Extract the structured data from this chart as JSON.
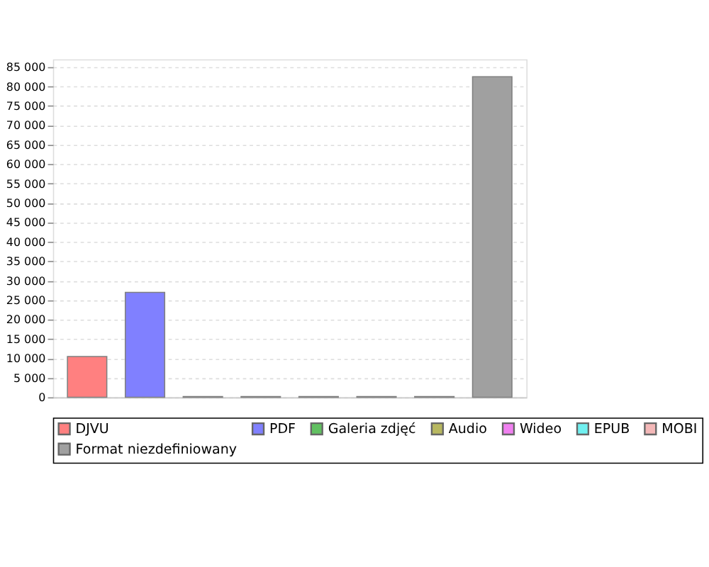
{
  "chart_data": {
    "type": "bar",
    "categories": [
      null,
      null,
      null,
      null,
      null,
      null,
      null,
      null
    ],
    "series": [
      {
        "name": "DJVU",
        "color": "#ff8080",
        "values": [
          10500,
          null,
          null,
          null,
          null,
          null,
          null,
          null
        ]
      },
      {
        "name": "PDF",
        "color": "#8080ff",
        "values": [
          null,
          27000,
          null,
          null,
          null,
          null,
          null,
          null
        ]
      },
      {
        "name": "Galeria zdjęć",
        "color": "#60c060",
        "values": [
          null,
          null,
          200,
          null,
          null,
          null,
          null,
          null
        ]
      },
      {
        "name": "Audio",
        "color": "#b8b860",
        "values": [
          null,
          null,
          null,
          200,
          null,
          null,
          null,
          null
        ]
      },
      {
        "name": "Wideo",
        "color": "#f080f0",
        "values": [
          null,
          null,
          null,
          null,
          200,
          null,
          null,
          null
        ]
      },
      {
        "name": "EPUB",
        "color": "#70f0f0",
        "values": [
          null,
          null,
          null,
          null,
          null,
          200,
          null,
          null
        ]
      },
      {
        "name": "MOBI",
        "color": "#f4b8b8",
        "values": [
          null,
          null,
          null,
          null,
          null,
          null,
          200,
          null
        ]
      },
      {
        "name": "Format niezdefiniowany",
        "color": "#a0a0a0",
        "values": [
          null,
          null,
          null,
          null,
          null,
          null,
          null,
          82500
        ]
      }
    ],
    "ylim": [
      0,
      87000
    ],
    "yticks": [
      0,
      {
        "value": 5000,
        "label": "5 000"
      },
      {
        "value": 10000,
        "label": "10 000"
      },
      {
        "value": 15000,
        "label": "15 000"
      },
      {
        "value": 20000,
        "label": "20 000"
      },
      {
        "value": 25000,
        "label": "25 000"
      },
      {
        "value": 30000,
        "label": "30 000"
      },
      {
        "value": 35000,
        "label": "35 000"
      },
      {
        "value": 40000,
        "label": "40 000"
      },
      {
        "value": 45000,
        "label": "45 000"
      },
      {
        "value": 50000,
        "label": "50 000"
      },
      {
        "value": 55000,
        "label": "55 000"
      },
      {
        "value": 60000,
        "label": "60 000"
      },
      {
        "value": 65000,
        "label": "65 000"
      },
      {
        "value": 70000,
        "label": "70 000"
      },
      {
        "value": 75000,
        "label": "75 000"
      },
      {
        "value": 80000,
        "label": "80 000"
      },
      {
        "value": 85000,
        "label": "85 000"
      }
    ],
    "grid": "y",
    "legend": "bottom",
    "tick_labels": "y"
  }
}
